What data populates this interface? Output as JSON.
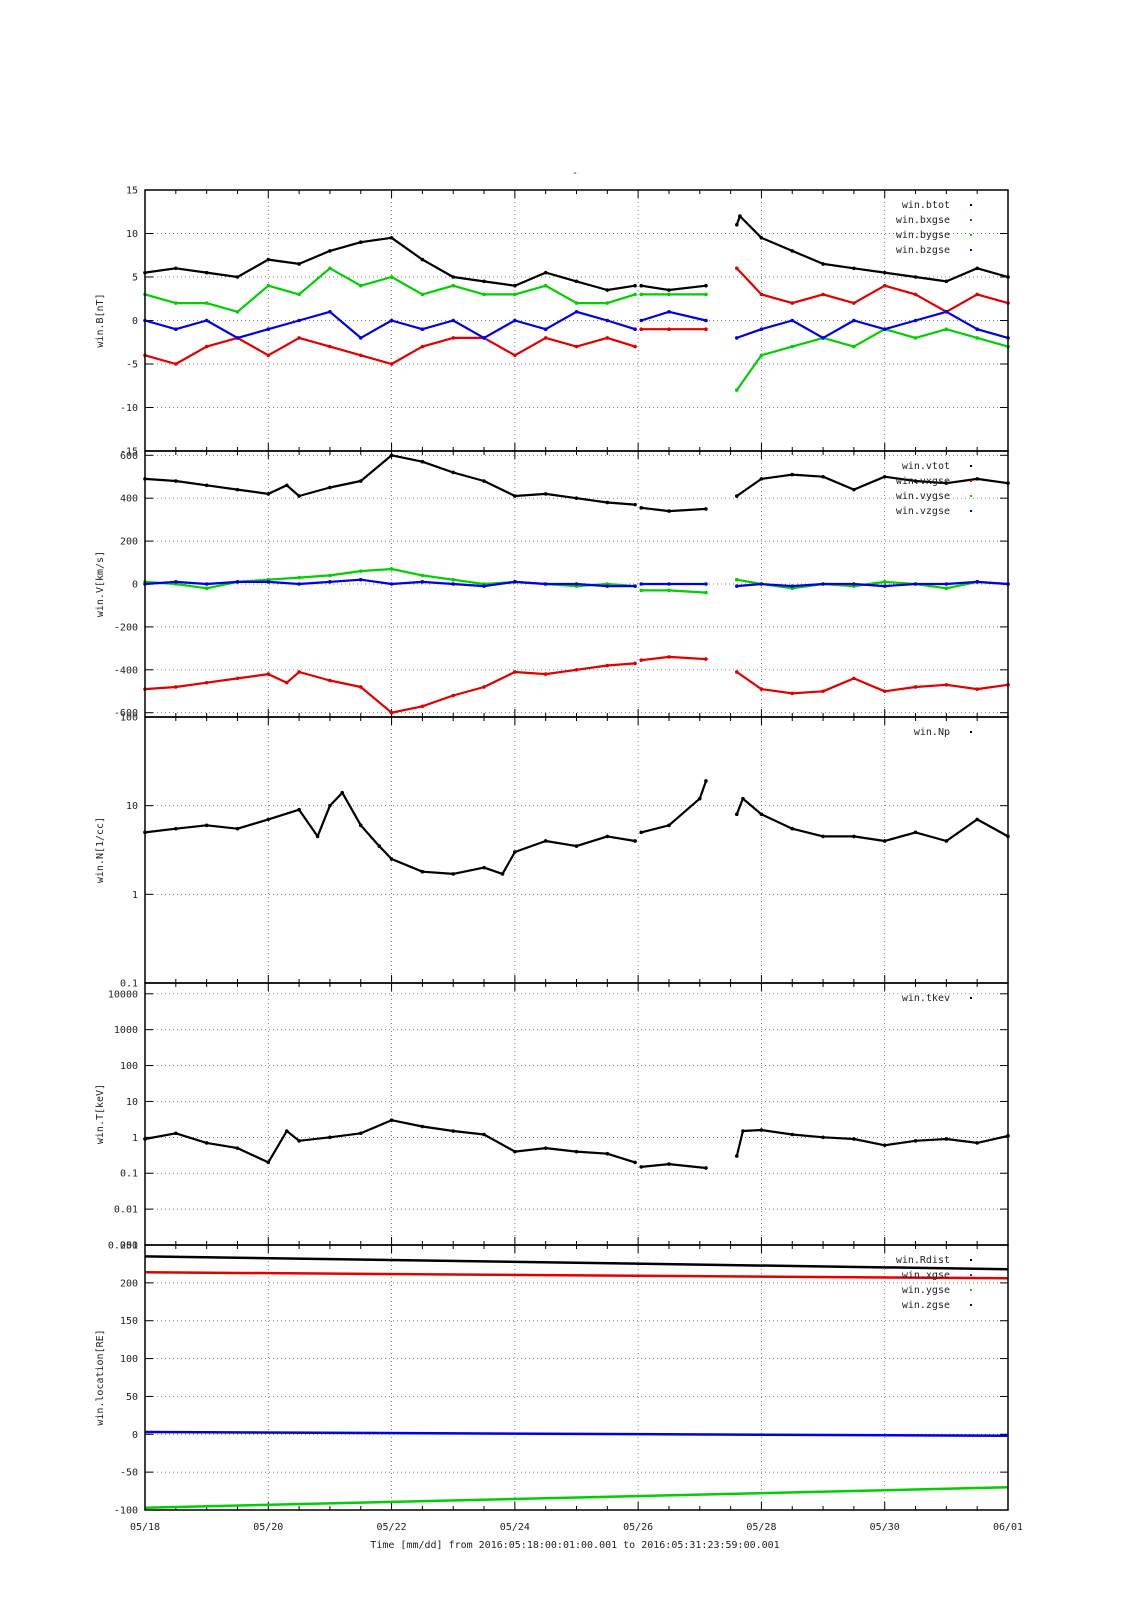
{
  "title": "-",
  "colors": {
    "black": "#000000",
    "red": "#e00000",
    "green": "#00d000",
    "blue": "#0000e0",
    "grid": "#555555"
  },
  "xaxis": {
    "label": "Time [mm/dd]  from 2016:05:18:00:01:00.001  to  2016:05:31:23:59:00.001",
    "range_days": [
      0,
      14
    ],
    "ticks": [
      {
        "day": 0,
        "label": "05/18"
      },
      {
        "day": 2,
        "label": "05/20"
      },
      {
        "day": 4,
        "label": "05/22"
      },
      {
        "day": 6,
        "label": "05/24"
      },
      {
        "day": 8,
        "label": "05/26"
      },
      {
        "day": 10,
        "label": "05/28"
      },
      {
        "day": 12,
        "label": "05/30"
      },
      {
        "day": 14,
        "label": "06/01"
      }
    ]
  },
  "chart_data": [
    {
      "type": "scatter",
      "ylabel": "win.B[nT]",
      "yscale": "linear",
      "ylim": [
        -15,
        15
      ],
      "yticks": [
        15,
        10,
        5,
        0,
        -5,
        -10,
        -15
      ],
      "ytick_labels": [
        "15",
        "10",
        "5",
        "0",
        "-5",
        "-10",
        "-15"
      ],
      "legend_position": "top-right",
      "gaps": [
        [
          7.95,
          8.05
        ],
        [
          9.1,
          9.6
        ]
      ],
      "series": [
        {
          "name": "win.btot",
          "color": "black",
          "x": [
            0,
            0.5,
            1,
            1.5,
            2,
            2.5,
            3,
            3.5,
            4,
            4.5,
            5,
            5.5,
            6,
            6.5,
            7,
            7.5,
            7.95,
            8.05,
            8.5,
            9.1,
            9.6,
            9.65,
            10,
            10.5,
            11,
            11.5,
            12,
            12.5,
            13,
            13.5,
            14
          ],
          "y": [
            5.5,
            6,
            5.5,
            5,
            7,
            6.5,
            8,
            9,
            9.5,
            7,
            5,
            4.5,
            4,
            5.5,
            4.5,
            3.5,
            4,
            4,
            3.5,
            4,
            11,
            12,
            9.5,
            8,
            6.5,
            6,
            5.5,
            5,
            4.5,
            6,
            5
          ]
        },
        {
          "name": "win.bxgse",
          "color": "red",
          "x": [
            0,
            0.5,
            1,
            1.5,
            2,
            2.5,
            3,
            3.5,
            4,
            4.5,
            5,
            5.5,
            6,
            6.5,
            7,
            7.5,
            7.95,
            8.05,
            8.5,
            9.1,
            9.6,
            10,
            10.5,
            11,
            11.5,
            12,
            12.5,
            13,
            13.5,
            14
          ],
          "y": [
            -4,
            -5,
            -3,
            -2,
            -4,
            -2,
            -3,
            -4,
            -5,
            -3,
            -2,
            -2,
            -4,
            -2,
            -3,
            -2,
            -3,
            -1,
            -1,
            -1,
            6,
            3,
            2,
            3,
            2,
            4,
            3,
            1,
            3,
            2
          ]
        },
        {
          "name": "win.bygse",
          "color": "green",
          "x": [
            0,
            0.5,
            1,
            1.5,
            2,
            2.5,
            3,
            3.5,
            4,
            4.5,
            5,
            5.5,
            6,
            6.5,
            7,
            7.5,
            7.95,
            8.05,
            8.5,
            9.1,
            9.6,
            10,
            10.5,
            11,
            11.5,
            12,
            12.5,
            13,
            13.5,
            14
          ],
          "y": [
            3,
            2,
            2,
            1,
            4,
            3,
            6,
            4,
            5,
            3,
            4,
            3,
            3,
            4,
            2,
            2,
            3,
            3,
            3,
            3,
            -8,
            -4,
            -3,
            -2,
            -3,
            -1,
            -2,
            -1,
            -2,
            -3
          ]
        },
        {
          "name": "win.bzgse",
          "color": "blue",
          "x": [
            0,
            0.5,
            1,
            1.5,
            2,
            2.5,
            3,
            3.5,
            4,
            4.5,
            5,
            5.5,
            6,
            6.5,
            7,
            7.5,
            7.95,
            8.05,
            8.5,
            9.1,
            9.6,
            10,
            10.5,
            11,
            11.5,
            12,
            12.5,
            13,
            13.5,
            14
          ],
          "y": [
            0,
            -1,
            0,
            -2,
            -1,
            0,
            1,
            -2,
            0,
            -1,
            0,
            -2,
            0,
            -1,
            1,
            0,
            -1,
            0,
            1,
            0,
            -2,
            -1,
            0,
            -2,
            0,
            -1,
            0,
            1,
            -1,
            -2
          ]
        }
      ]
    },
    {
      "type": "scatter",
      "ylabel": "win.V[km/s]",
      "yscale": "linear",
      "ylim": [
        -620,
        620
      ],
      "yticks": [
        600,
        400,
        200,
        0,
        -200,
        -400,
        -600
      ],
      "ytick_labels": [
        "600",
        "400",
        "200",
        "0",
        "-200",
        "-400",
        "-600"
      ],
      "legend_position": "top-right",
      "gaps": [
        [
          7.95,
          8.05
        ],
        [
          9.1,
          9.6
        ]
      ],
      "series": [
        {
          "name": "win.vtot",
          "color": "black",
          "x": [
            0,
            0.5,
            1,
            1.5,
            2,
            2.3,
            2.5,
            3,
            3.5,
            4,
            4.5,
            5,
            5.5,
            6,
            6.5,
            7,
            7.5,
            7.95,
            8.05,
            8.5,
            9.1,
            9.6,
            10,
            10.5,
            11,
            11.5,
            12,
            12.5,
            13,
            13.5,
            14
          ],
          "y": [
            490,
            480,
            460,
            440,
            420,
            460,
            410,
            450,
            480,
            600,
            570,
            520,
            480,
            410,
            420,
            400,
            380,
            370,
            355,
            340,
            350,
            410,
            490,
            510,
            500,
            440,
            500,
            480,
            470,
            490,
            470
          ]
        },
        {
          "name": "win.vxgse",
          "color": "red",
          "x": [
            0,
            0.5,
            1,
            1.5,
            2,
            2.3,
            2.5,
            3,
            3.5,
            4,
            4.5,
            5,
            5.5,
            6,
            6.5,
            7,
            7.5,
            7.95,
            8.05,
            8.5,
            9.1,
            9.6,
            10,
            10.5,
            11,
            11.5,
            12,
            12.5,
            13,
            13.5,
            14
          ],
          "y": [
            -490,
            -480,
            -460,
            -440,
            -420,
            -460,
            -410,
            -450,
            -480,
            -600,
            -570,
            -520,
            -480,
            -410,
            -420,
            -400,
            -380,
            -370,
            -355,
            -340,
            -350,
            -410,
            -490,
            -510,
            -500,
            -440,
            -500,
            -480,
            -470,
            -490,
            -470
          ]
        },
        {
          "name": "win.vygse",
          "color": "green",
          "x": [
            0,
            0.5,
            1,
            1.5,
            2,
            2.5,
            3,
            3.5,
            4,
            4.5,
            5,
            5.5,
            6,
            6.5,
            7,
            7.5,
            7.95,
            8.05,
            8.5,
            9.1,
            9.6,
            10,
            10.5,
            11,
            11.5,
            12,
            12.5,
            13,
            13.5,
            14
          ],
          "y": [
            10,
            0,
            -20,
            10,
            20,
            30,
            40,
            60,
            70,
            40,
            20,
            0,
            10,
            0,
            -10,
            0,
            -10,
            -30,
            -30,
            -40,
            20,
            0,
            -20,
            0,
            -10,
            10,
            0,
            -20,
            10,
            0
          ]
        },
        {
          "name": "win.vzgse",
          "color": "blue",
          "x": [
            0,
            0.5,
            1,
            1.5,
            2,
            2.5,
            3,
            3.5,
            4,
            4.5,
            5,
            5.5,
            6,
            6.5,
            7,
            7.5,
            7.95,
            8.05,
            8.5,
            9.1,
            9.6,
            10,
            10.5,
            11,
            11.5,
            12,
            12.5,
            13,
            13.5,
            14
          ],
          "y": [
            0,
            10,
            0,
            10,
            10,
            0,
            10,
            20,
            0,
            10,
            0,
            -10,
            10,
            0,
            0,
            -10,
            -10,
            0,
            0,
            0,
            -10,
            0,
            -10,
            0,
            0,
            -10,
            0,
            0,
            10,
            0
          ]
        }
      ]
    },
    {
      "type": "scatter",
      "ylabel": "win.N[1/cc]",
      "yscale": "log",
      "ylim": [
        0.1,
        100
      ],
      "yticks": [
        100,
        10,
        1,
        0.1
      ],
      "ytick_labels": [
        "100",
        "10",
        "1",
        "0.1"
      ],
      "legend_position": "top-right",
      "gaps": [
        [
          7.95,
          8.05
        ],
        [
          9.1,
          9.6
        ]
      ],
      "series": [
        {
          "name": "win.Np",
          "color": "black",
          "x": [
            0,
            0.5,
            1,
            1.5,
            2,
            2.5,
            2.8,
            3,
            3.2,
            3.5,
            3.8,
            4,
            4.5,
            5,
            5.5,
            5.8,
            6,
            6.5,
            7,
            7.5,
            7.95,
            8.05,
            8.5,
            9,
            9.1,
            9.6,
            9.7,
            10,
            10.5,
            11,
            11.5,
            12,
            12.5,
            13,
            13.5,
            14
          ],
          "y": [
            5,
            5.5,
            6,
            5.5,
            7,
            9,
            4.5,
            10,
            14,
            6,
            3.5,
            2.5,
            1.8,
            1.7,
            2,
            1.7,
            3,
            4,
            3.5,
            4.5,
            4,
            5,
            6,
            12,
            19,
            8,
            12,
            8,
            5.5,
            4.5,
            4.5,
            4,
            5,
            4,
            7,
            4.5
          ]
        }
      ]
    },
    {
      "type": "scatter",
      "ylabel": "win.T[keV]",
      "yscale": "log",
      "ylim": [
        0.001,
        20000
      ],
      "yticks": [
        10000,
        1000,
        100,
        10,
        1,
        0.1,
        0.01,
        0.001
      ],
      "ytick_labels": [
        "10000",
        "1000",
        "100",
        "10",
        "1",
        "0.1",
        "0.01",
        "0.001"
      ],
      "legend_position": "top-right",
      "gaps": [
        [
          7.95,
          8.05
        ],
        [
          9.1,
          9.6
        ]
      ],
      "series": [
        {
          "name": "win.tkev",
          "color": "black",
          "x": [
            0,
            0.5,
            1,
            1.5,
            2,
            2.3,
            2.5,
            3,
            3.5,
            4,
            4.5,
            5,
            5.5,
            6,
            6.5,
            7,
            7.5,
            7.95,
            8.05,
            8.5,
            9.1,
            9.6,
            9.7,
            10,
            10.5,
            11,
            11.5,
            12,
            12.5,
            13,
            13.5,
            14
          ],
          "y": [
            0.9,
            1.3,
            0.7,
            0.5,
            0.2,
            1.5,
            0.8,
            1.0,
            1.3,
            3.0,
            2.0,
            1.5,
            1.2,
            0.4,
            0.5,
            0.4,
            0.35,
            0.2,
            0.15,
            0.18,
            0.14,
            0.3,
            1.5,
            1.6,
            1.2,
            1.0,
            0.9,
            0.6,
            0.8,
            0.9,
            0.7,
            1.1
          ]
        }
      ]
    },
    {
      "type": "line",
      "ylabel": "win.location[RE]",
      "yscale": "linear",
      "ylim": [
        -100,
        250
      ],
      "yticks": [
        250,
        200,
        150,
        100,
        50,
        0,
        -50,
        -100
      ],
      "ytick_labels": [
        "250",
        "200",
        "150",
        "100",
        "50",
        "0",
        "-50",
        "-100"
      ],
      "legend_position": "top-right",
      "gaps": [
        [
          7.95,
          8.05
        ],
        [
          9.1,
          9.6
        ]
      ],
      "series": [
        {
          "name": "win.Rdist",
          "color": "black",
          "x": [
            0,
            14
          ],
          "y": [
            235,
            218
          ]
        },
        {
          "name": "win.xgse",
          "color": "red",
          "x": [
            0,
            14
          ],
          "y": [
            214,
            206
          ]
        },
        {
          "name": "win.ygse",
          "color": "green",
          "x": [
            0,
            14
          ],
          "y": [
            -97,
            -70
          ]
        },
        {
          "name": "win.zgse",
          "color": "blue",
          "x": [
            0,
            14
          ],
          "y": [
            3,
            -2
          ]
        }
      ]
    }
  ]
}
